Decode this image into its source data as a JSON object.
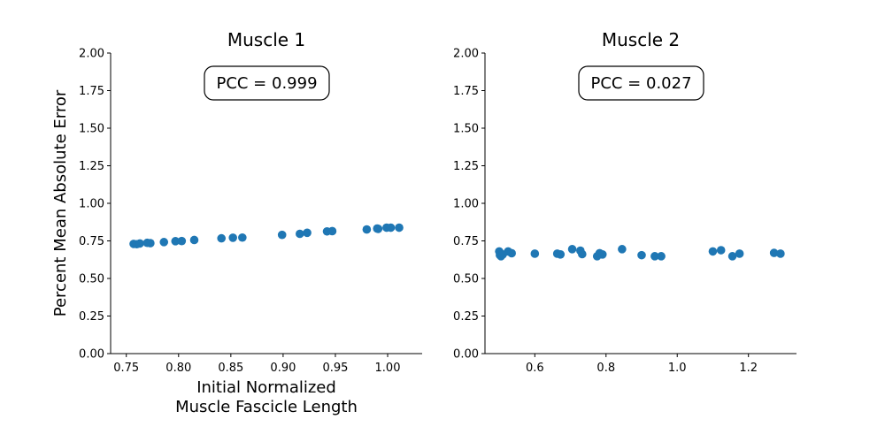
{
  "colors": {
    "marker": "#1f77b4",
    "axis": "#000000",
    "background": "#ffffff"
  },
  "shared_ylabel": "Percent Mean Absolute Error",
  "chart_data": [
    {
      "type": "scatter",
      "title": "Muscle 1",
      "xlabel": [
        "Initial Normalized",
        "Muscle Fascicle Length"
      ],
      "ylabel": "Percent Mean Absolute Error",
      "annotation": "PCC = 0.999",
      "xlim": [
        0.735,
        1.033
      ],
      "ylim": [
        0,
        2.0
      ],
      "xticks": [
        0.75,
        0.8,
        0.85,
        0.9,
        0.95,
        1.0
      ],
      "xtick_labels": [
        "0.75",
        "0.80",
        "0.85",
        "0.90",
        "0.95",
        "1.00"
      ],
      "yticks": [
        0,
        0.25,
        0.5,
        0.75,
        1.0,
        1.25,
        1.5,
        1.75,
        2.0
      ],
      "ytick_labels": [
        "0.00",
        "0.25",
        "0.50",
        "0.75",
        "1.00",
        "1.25",
        "1.50",
        "1.75",
        "2.00"
      ],
      "points": [
        [
          0.757,
          0.73
        ],
        [
          0.76,
          0.728
        ],
        [
          0.763,
          0.733
        ],
        [
          0.77,
          0.737
        ],
        [
          0.773,
          0.735
        ],
        [
          0.786,
          0.742
        ],
        [
          0.797,
          0.748
        ],
        [
          0.803,
          0.749
        ],
        [
          0.815,
          0.756
        ],
        [
          0.841,
          0.767
        ],
        [
          0.852,
          0.771
        ],
        [
          0.861,
          0.772
        ],
        [
          0.899,
          0.79
        ],
        [
          0.916,
          0.797
        ],
        [
          0.923,
          0.804
        ],
        [
          0.942,
          0.813
        ],
        [
          0.947,
          0.815
        ],
        [
          0.98,
          0.826
        ],
        [
          0.99,
          0.832
        ],
        [
          0.991,
          0.83
        ],
        [
          0.999,
          0.838
        ],
        [
          1.003,
          0.838
        ],
        [
          1.011,
          0.838
        ]
      ]
    },
    {
      "type": "scatter",
      "title": "Muscle 2",
      "xlabel": "",
      "ylabel": "",
      "annotation": "PCC = 0.027",
      "xlim": [
        0.46,
        1.335
      ],
      "ylim": [
        0,
        2.0
      ],
      "xticks": [
        0.6,
        0.8,
        1.0,
        1.2
      ],
      "xtick_labels": [
        "0.6",
        "0.8",
        "1.0",
        "1.2"
      ],
      "yticks": [
        0,
        0.25,
        0.5,
        0.75,
        1.0,
        1.25,
        1.5,
        1.75,
        2.0
      ],
      "ytick_labels": [
        "0.00",
        "0.25",
        "0.50",
        "0.75",
        "1.00",
        "1.25",
        "1.50",
        "1.75",
        "2.00"
      ],
      "points": [
        [
          0.5,
          0.68
        ],
        [
          0.502,
          0.655
        ],
        [
          0.505,
          0.648
        ],
        [
          0.51,
          0.66
        ],
        [
          0.525,
          0.68
        ],
        [
          0.535,
          0.668
        ],
        [
          0.6,
          0.665
        ],
        [
          0.663,
          0.665
        ],
        [
          0.672,
          0.66
        ],
        [
          0.705,
          0.695
        ],
        [
          0.728,
          0.685
        ],
        [
          0.733,
          0.662
        ],
        [
          0.775,
          0.648
        ],
        [
          0.782,
          0.668
        ],
        [
          0.79,
          0.66
        ],
        [
          0.845,
          0.695
        ],
        [
          0.9,
          0.655
        ],
        [
          0.937,
          0.648
        ],
        [
          0.955,
          0.648
        ],
        [
          1.1,
          0.68
        ],
        [
          1.123,
          0.688
        ],
        [
          1.155,
          0.648
        ],
        [
          1.175,
          0.665
        ],
        [
          1.272,
          0.67
        ],
        [
          1.29,
          0.665
        ]
      ]
    }
  ]
}
